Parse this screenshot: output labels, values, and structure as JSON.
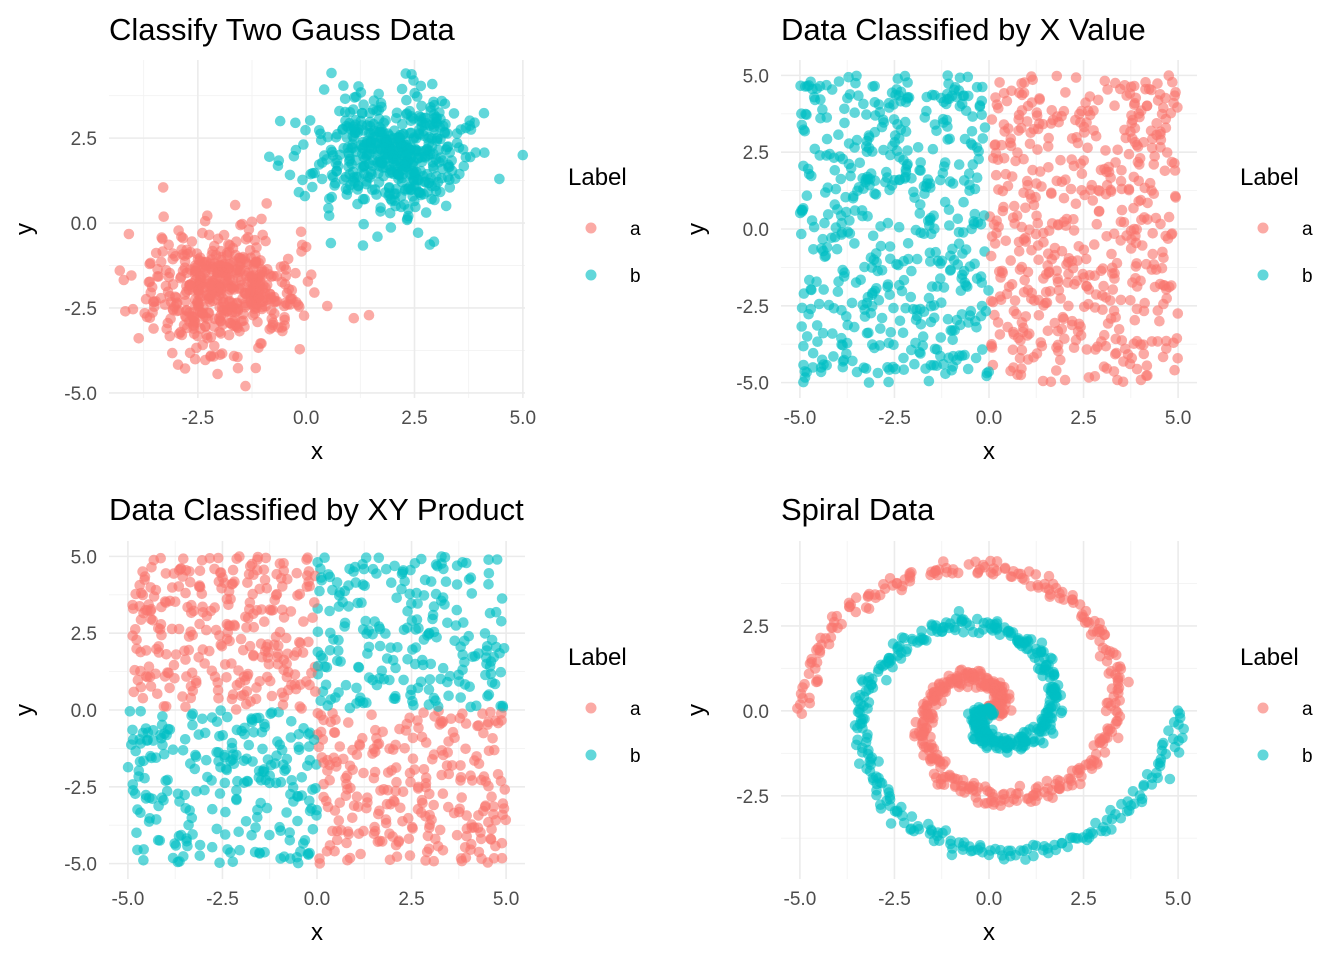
{
  "colors": {
    "a": "#F8766D",
    "b": "#00BFC4"
  },
  "chart_data": [
    {
      "type": "scatter",
      "title": "Classify Two Gauss Data",
      "xlabel": "x",
      "ylabel": "y",
      "xlim": [
        -4.55,
        5.05
      ],
      "ylim": [
        -5.15,
        4.8
      ],
      "xticks": [
        -2.5,
        0.0,
        2.5,
        5.0
      ],
      "xtick_labels": [
        "-2.5",
        "0.0",
        "2.5",
        "5.0"
      ],
      "yticks": [
        -5.0,
        -2.5,
        0.0,
        2.5
      ],
      "ytick_labels": [
        "-5.0",
        "-2.5",
        "0.0",
        "2.5"
      ],
      "grid": true,
      "legend": {
        "title": "Label",
        "position": "right",
        "entries": [
          "a",
          "b"
        ]
      },
      "generator": {
        "kind": "gauss",
        "n_per_class": 500,
        "centers": {
          "a": [
            -2,
            -2
          ],
          "b": [
            2,
            2
          ]
        },
        "sd": 0.85
      },
      "series": [
        {
          "name": "a",
          "sample": [
            [
              -3.3,
              1.05
            ],
            [
              -4.3,
              -1.4
            ],
            [
              -1.4,
              -4.8
            ],
            [
              1.1,
              -2.8
            ],
            [
              -2.0,
              -1.9
            ],
            [
              -2.5,
              -2.3
            ]
          ]
        },
        {
          "name": "b",
          "sample": [
            [
              5.0,
              2.0
            ],
            [
              -0.85,
              1.95
            ],
            [
              -0.6,
              3.0
            ],
            [
              2.3,
              4.4
            ],
            [
              2.95,
              -0.55
            ],
            [
              2.0,
              2.0
            ]
          ]
        }
      ]
    },
    {
      "type": "scatter",
      "title": "Data Classified by X Value",
      "xlabel": "x",
      "ylabel": "y",
      "xlim": [
        -5.5,
        5.5
      ],
      "ylim": [
        -5.5,
        5.5
      ],
      "xticks": [
        -5.0,
        -2.5,
        0.0,
        2.5,
        5.0
      ],
      "xtick_labels": [
        "-5.0",
        "-2.5",
        "0.0",
        "2.5",
        "5.0"
      ],
      "yticks": [
        -5.0,
        -2.5,
        0.0,
        2.5,
        5.0
      ],
      "ytick_labels": [
        "-5.0",
        "-2.5",
        "0.0",
        "2.5",
        "5.0"
      ],
      "grid": true,
      "legend": {
        "title": "Label",
        "position": "right",
        "entries": [
          "a",
          "b"
        ]
      },
      "generator": {
        "kind": "uniform",
        "n": 1000,
        "range": [
          -5,
          5
        ],
        "rule": "a if x > 0 else b"
      },
      "series": [
        {
          "name": "a",
          "region": "x > 0"
        },
        {
          "name": "b",
          "region": "x < 0"
        }
      ]
    },
    {
      "type": "scatter",
      "title": "Data Classified by XY Product",
      "xlabel": "x",
      "ylabel": "y",
      "xlim": [
        -5.5,
        5.5
      ],
      "ylim": [
        -5.5,
        5.5
      ],
      "xticks": [
        -5.0,
        -2.5,
        0.0,
        2.5,
        5.0
      ],
      "xtick_labels": [
        "-5.0",
        "-2.5",
        "0.0",
        "2.5",
        "5.0"
      ],
      "yticks": [
        -5.0,
        -2.5,
        0.0,
        2.5,
        5.0
      ],
      "ytick_labels": [
        "-5.0",
        "-2.5",
        "0.0",
        "2.5",
        "5.0"
      ],
      "grid": true,
      "legend": {
        "title": "Label",
        "position": "right",
        "entries": [
          "a",
          "b"
        ]
      },
      "generator": {
        "kind": "uniform",
        "n": 1000,
        "range": [
          -5,
          5
        ],
        "rule": "a if x*y < 0 else b"
      },
      "series": [
        {
          "name": "a",
          "region": "x * y < 0"
        },
        {
          "name": "b",
          "region": "x * y > 0"
        }
      ]
    },
    {
      "type": "scatter",
      "title": "Spiral Data",
      "xlabel": "x",
      "ylabel": "y",
      "xlim": [
        -5.5,
        5.5
      ],
      "ylim": [
        -4.95,
        5.0
      ],
      "xticks": [
        -5.0,
        -2.5,
        0.0,
        2.5,
        5.0
      ],
      "xtick_labels": [
        "-5.0",
        "-2.5",
        "0.0",
        "2.5",
        "5.0"
      ],
      "yticks": [
        -2.5,
        0.0,
        2.5
      ],
      "ytick_labels": [
        "-2.5",
        "0.0",
        "2.5"
      ],
      "grid": true,
      "legend": {
        "title": "Label",
        "position": "right",
        "entries": [
          "a",
          "b"
        ]
      },
      "generator": {
        "kind": "spiral",
        "n_per_class": 500,
        "max_radius": 5,
        "turns": 1.5,
        "noise": 0.12,
        "class_b_offset_angle": 3.14159
      },
      "series": [
        {
          "name": "a",
          "ends": [
            [
              0.0,
              0.0
            ],
            [
              5.0,
              0.0
            ]
          ]
        },
        {
          "name": "b",
          "ends": [
            [
              0.0,
              0.0
            ],
            [
              -5.0,
              0.0
            ]
          ]
        }
      ]
    }
  ]
}
